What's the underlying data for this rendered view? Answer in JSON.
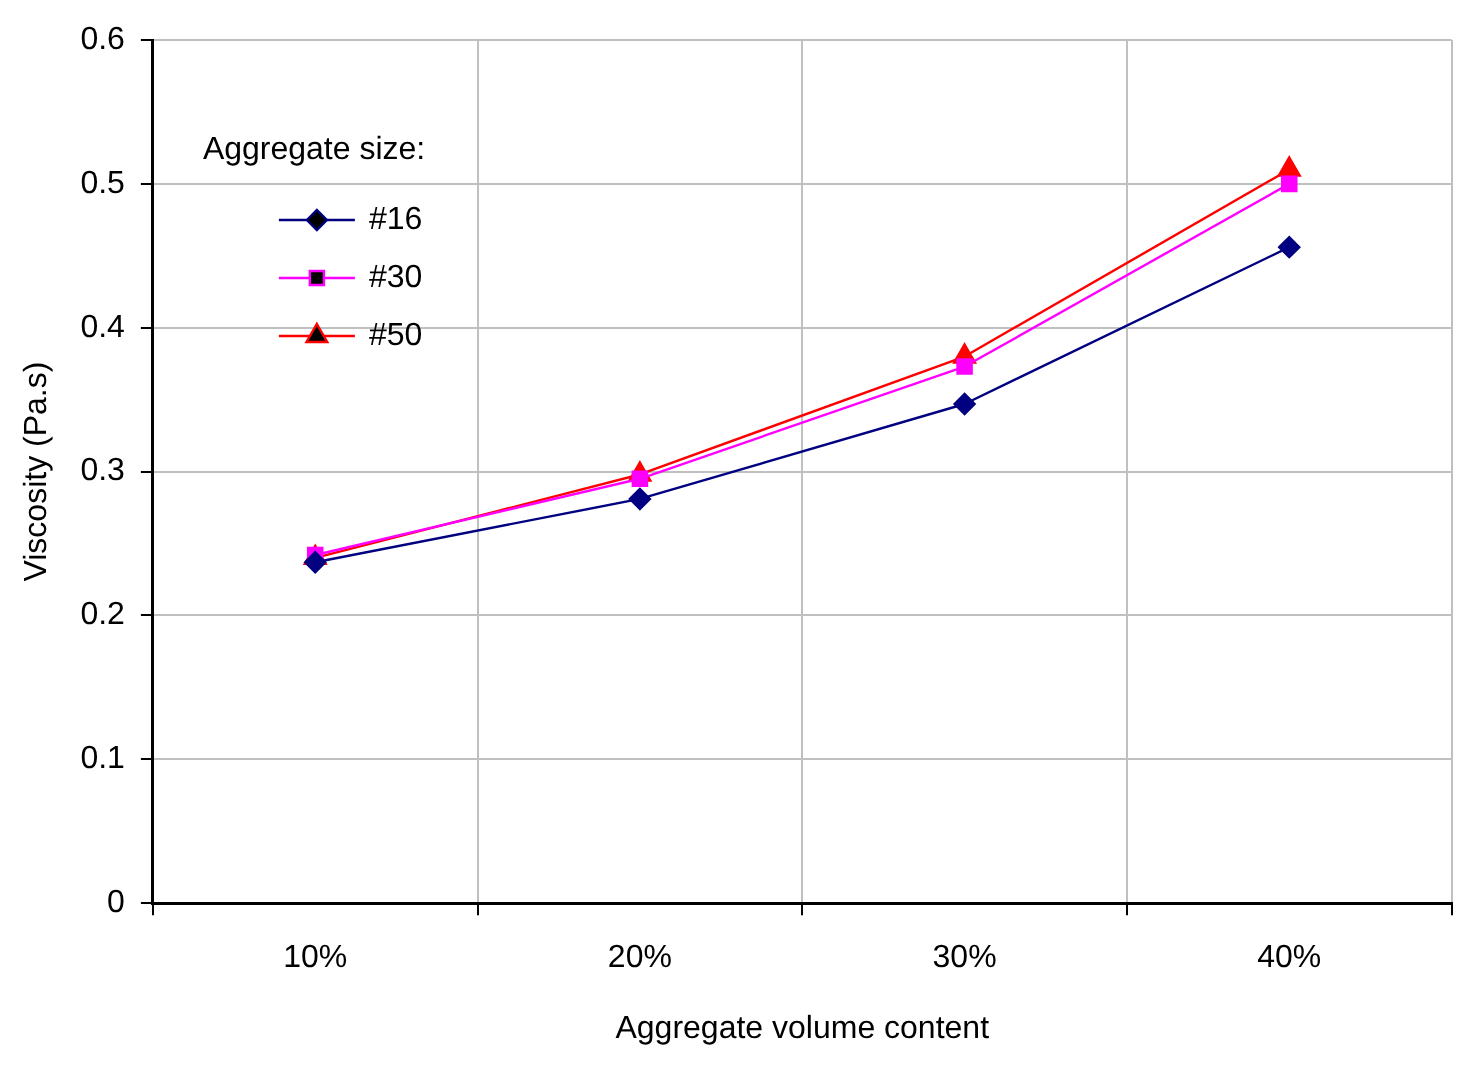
{
  "chart_data": {
    "type": "line",
    "xlabel": "Aggregate volume content",
    "ylabel": "Viscosity (Pa.s)",
    "legend_title": "Aggregate size:",
    "legend": "top left",
    "grid": true,
    "line_style": "solid",
    "categories": [
      "10%",
      "20%",
      "30%",
      "40%"
    ],
    "ylim": [
      0,
      0.6
    ],
    "yticks": [
      0,
      0.1,
      0.2,
      0.3,
      0.4,
      0.5,
      0.6
    ],
    "series": [
      {
        "name": "#16",
        "color": "#000080",
        "marker": "diamond",
        "values": [
          0.237,
          0.281,
          0.347,
          0.456
        ]
      },
      {
        "name": "#30",
        "color": "#ff00ff",
        "marker": "square",
        "values": [
          0.242,
          0.295,
          0.373,
          0.5
        ]
      },
      {
        "name": "#50",
        "color": "#ff0000",
        "marker": "triangle",
        "values": [
          0.24,
          0.298,
          0.38,
          0.51
        ]
      }
    ]
  }
}
